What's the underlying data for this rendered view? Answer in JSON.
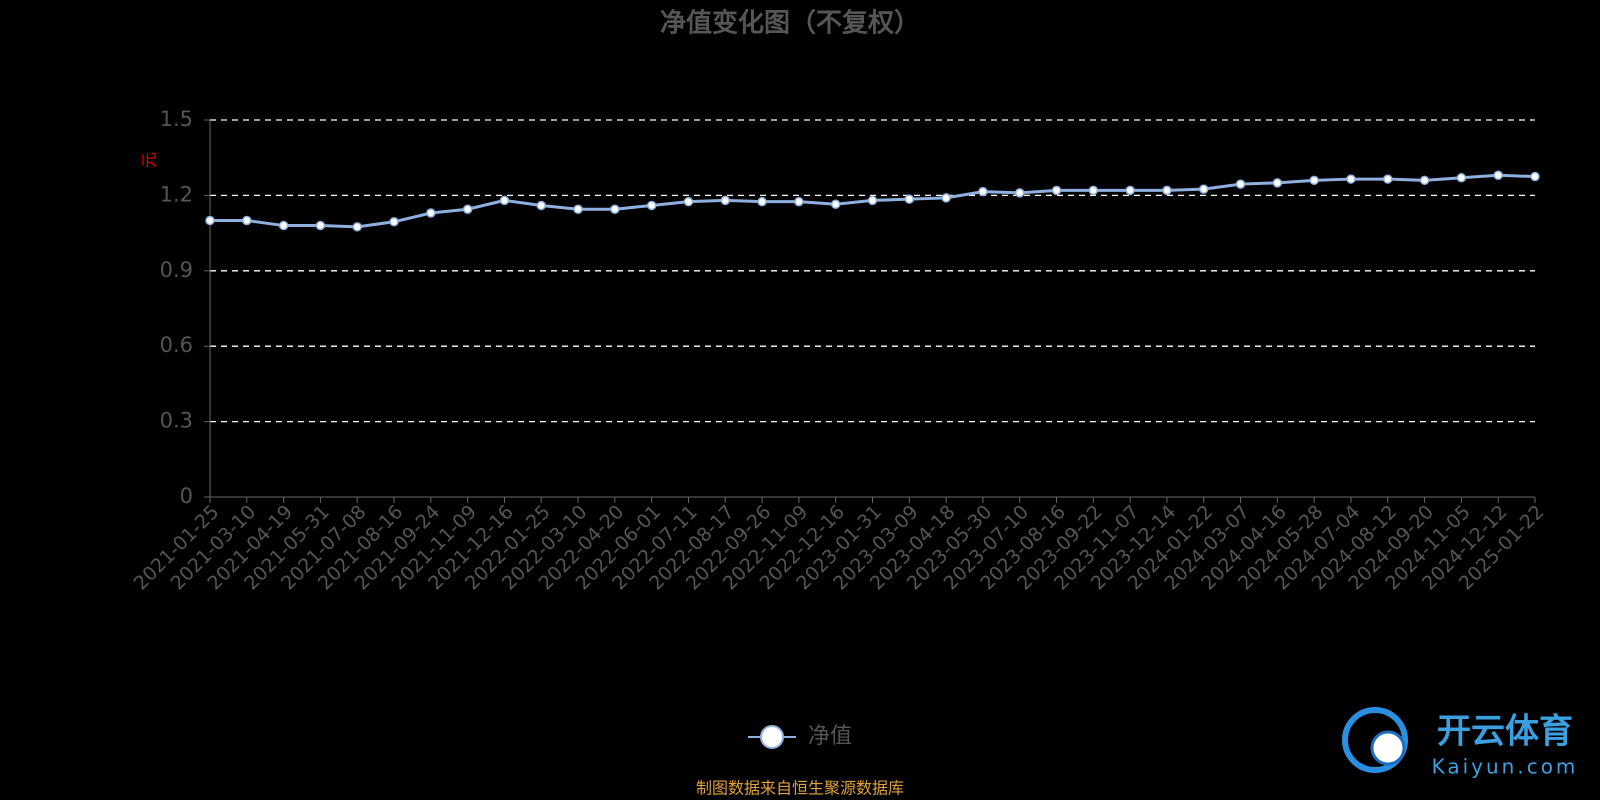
{
  "chart_data": {
    "type": "line",
    "title": "净值变化图（不复权）",
    "y_label": "元",
    "categories": [
      "2021-01-25",
      "2021-03-10",
      "2021-04-19",
      "2021-05-31",
      "2021-07-08",
      "2021-08-16",
      "2021-09-24",
      "2021-11-09",
      "2021-12-16",
      "2022-01-25",
      "2022-03-10",
      "2022-04-20",
      "2022-06-01",
      "2022-07-11",
      "2022-08-17",
      "2022-09-26",
      "2022-11-09",
      "2022-12-16",
      "2023-01-31",
      "2023-03-09",
      "2023-04-18",
      "2023-05-30",
      "2023-07-10",
      "2023-08-16",
      "2023-09-22",
      "2023-11-07",
      "2023-12-14",
      "2024-01-22",
      "2024-03-07",
      "2024-04-16",
      "2024-05-28",
      "2024-07-04",
      "2024-08-12",
      "2024-09-20",
      "2024-11-05",
      "2024-12-12",
      "2025-01-22"
    ],
    "series": [
      {
        "name": "净值",
        "color": "#8db0e0",
        "values": [
          1.1,
          1.1,
          1.08,
          1.08,
          1.075,
          1.095,
          1.13,
          1.145,
          1.18,
          1.16,
          1.145,
          1.145,
          1.16,
          1.175,
          1.18,
          1.175,
          1.175,
          1.165,
          1.18,
          1.185,
          1.19,
          1.215,
          1.21,
          1.22,
          1.22,
          1.22,
          1.22,
          1.225,
          1.245,
          1.25,
          1.26,
          1.265,
          1.265,
          1.26,
          1.27,
          1.28,
          1.275
        ]
      }
    ],
    "ylim": [
      0,
      1.5
    ],
    "yticks": [
      0,
      0.3,
      0.6,
      0.9,
      1.2,
      1.5
    ],
    "grid": true,
    "legend": "bottom",
    "source": "制图数据来自恒生聚源数据库",
    "watermark": {
      "brand": "开云体育",
      "site": "Kaiyun.com"
    }
  }
}
